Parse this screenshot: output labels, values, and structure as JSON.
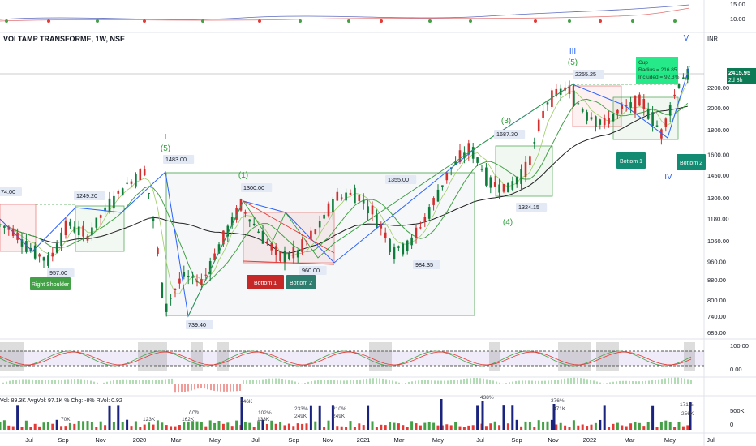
{
  "header": {
    "title": "VOLTAMP TRANSFORME, 1W, NSE",
    "currency": "INR"
  },
  "price_axis": {
    "ticks": [
      "2200.00",
      "2000.00",
      "1800.00",
      "1600.00",
      "1450.00",
      "1300.00",
      "1180.00",
      "1060.00",
      "960.00",
      "880.00",
      "800.00",
      "740.00",
      "685.00"
    ],
    "last_price": "2415.95",
    "countdown": "2d 8h",
    "last_color": "#0b7a55"
  },
  "top_axis": {
    "ticks": [
      "15.00",
      "10.00"
    ]
  },
  "osc_axis": {
    "ticks": [
      "100.00",
      "0.00"
    ]
  },
  "vol_axis": {
    "ticks": [
      "500K",
      "0"
    ]
  },
  "time_axis": {
    "ticks": [
      "Jul",
      "Sep",
      "Nov",
      "2020",
      "Mar",
      "May",
      "Jul",
      "Sep",
      "Nov",
      "2021",
      "Mar",
      "May",
      "Jul",
      "Sep",
      "Nov",
      "2022",
      "Mar",
      "May",
      "Jul"
    ]
  },
  "volume_header": {
    "vol_label": "Vol:",
    "vol_value": "89.3K",
    "avg_label": "AvgVol:",
    "avg_value": "97.1K",
    "chg_label": "% Chg:",
    "chg_value": "-8%",
    "rvol_label": "RVol:",
    "rvol_value": "0.92"
  },
  "volume_labels": [
    "646K",
    "102%",
    "133K",
    "70K",
    "123K",
    "162K",
    "77%",
    "233%",
    "249K",
    "210%",
    "249K",
    "438%",
    "376%",
    "371K",
    "171%",
    "256K"
  ],
  "price_labels": [
    "74.00",
    "957.00",
    "1249.20",
    "1483.00",
    "739.40",
    "1300.00",
    "960.00",
    "1355.00",
    "984.35",
    "1687.30",
    "1324.15",
    "2255.25"
  ],
  "wave_labels": [
    "I",
    "(5)",
    "(1)",
    "III",
    "(5)",
    "(3)",
    "(4)",
    "V",
    "IV"
  ],
  "pattern_labels": {
    "right_shoulder": "Right Shoulder",
    "bottom1_a": "Bottom 1",
    "bottom2_a": "Bottom 2",
    "bottom1_b": "Bottom 1",
    "bottom2_b": "Bottom 2"
  },
  "cup_box": {
    "line1": "Cup",
    "line2": "Radius = 216.85",
    "line3": "Included = 92.3%"
  },
  "chart_data": {
    "type": "candlestick",
    "title": "VOLTAMP TRANSFORME, 1W, NSE",
    "x_range": [
      "Jul 2019",
      "Jul 2022"
    ],
    "y_axis_ticks": [
      685,
      740,
      800,
      880,
      960,
      1060,
      1180,
      1300,
      1450,
      1600,
      1800,
      2000,
      2200
    ],
    "log_scale": true,
    "last_price": 2415.95,
    "close_path": [
      [
        "Jun 2019",
        1160
      ],
      [
        "Jul 2019",
        1120
      ],
      [
        "Aug 2019",
        1020
      ],
      [
        "Sep 2019",
        960
      ],
      [
        "Oct 2019",
        1150
      ],
      [
        "Nov 2019",
        1080
      ],
      [
        "Dec 2019",
        1240
      ],
      [
        "Jan 2020",
        1380
      ],
      [
        "Feb 2020",
        1480
      ],
      [
        "Mar 2020",
        760
      ],
      [
        "Apr 2020",
        900
      ],
      [
        "May 2020",
        870
      ],
      [
        "Jun 2020",
        1050
      ],
      [
        "Jul 2020",
        1250
      ],
      [
        "Aug 2020",
        1100
      ],
      [
        "Sep 2020",
        980
      ],
      [
        "Oct 2020",
        1000
      ],
      [
        "Nov 2020",
        1120
      ],
      [
        "Dec 2020",
        1300
      ],
      [
        "Jan 2021",
        1330
      ],
      [
        "Feb 2021",
        1200
      ],
      [
        "Mar 2021",
        1010
      ],
      [
        "Apr 2021",
        1060
      ],
      [
        "May 2021",
        1250
      ],
      [
        "Jun 2021",
        1500
      ],
      [
        "Jul 2021",
        1650
      ],
      [
        "Aug 2021",
        1400
      ],
      [
        "Sep 2021",
        1360
      ],
      [
        "Oct 2021",
        1500
      ],
      [
        "Nov 2021",
        2050
      ],
      [
        "Dec 2021",
        2200
      ],
      [
        "Jan 2022",
        1950
      ],
      [
        "Feb 2022",
        1850
      ],
      [
        "Mar 2022",
        2000
      ],
      [
        "Apr 2022",
        2050
      ],
      [
        "May 2022",
        1760
      ],
      [
        "Jun 2022",
        2300
      ],
      [
        "Jul 2022",
        2416
      ]
    ],
    "oscillator": {
      "ylim": [
        0,
        100
      ]
    },
    "volume": {
      "ylim": [
        0,
        700000
      ]
    }
  },
  "colors": {
    "up": "#089981",
    "down": "#e03030",
    "ma_dark": "#222222",
    "ma_green": "#43a047",
    "wave_green": "#2e9c3a",
    "trend_blue": "#2962ff"
  }
}
